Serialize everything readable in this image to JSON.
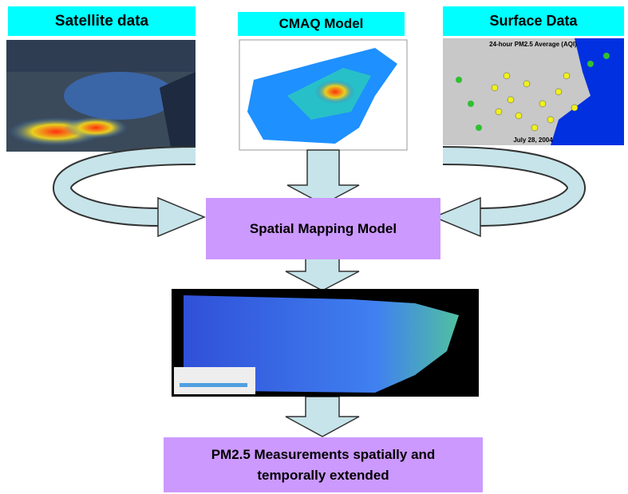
{
  "sources": [
    {
      "label": "Satellite data"
    },
    {
      "label": "CMAQ Model"
    },
    {
      "label": "Surface Data",
      "map_title": "24-hour PM2.5 Average (AQI)",
      "map_date": "July 28, 2004"
    }
  ],
  "process": {
    "label": "Spatial Mapping Model"
  },
  "output": {
    "lines": [
      "PM2.5 Measurements spatially and",
      "temporally extended"
    ]
  }
}
